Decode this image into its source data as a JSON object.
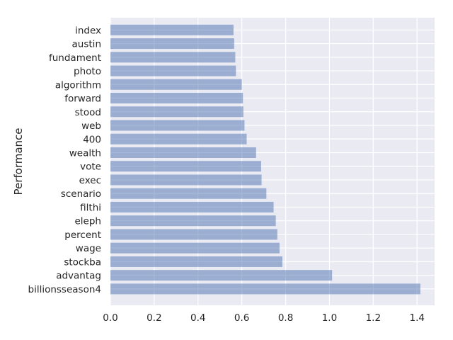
{
  "chart_data": {
    "type": "bar",
    "orientation": "horizontal",
    "title": "",
    "xlabel": "",
    "ylabel": "Performance",
    "xlim": [
      0,
      1.48
    ],
    "xticks": [
      0.0,
      0.2,
      0.4,
      0.6,
      0.8,
      1.0,
      1.2,
      1.4
    ],
    "xtick_labels": [
      "0.0",
      "0.2",
      "0.4",
      "0.6",
      "0.8",
      "1.0",
      "1.2",
      "1.4"
    ],
    "grid": true,
    "background": "#eaeaf2",
    "bar_color": "#4c72b0",
    "bar_alpha": 0.5,
    "categories": [
      "billionsseason4",
      "advantag",
      "stockba",
      "wage",
      "percent",
      "eleph",
      "filthi",
      "scenario",
      "exec",
      "vote",
      "wealth",
      "400",
      "web",
      "stood",
      "forward",
      "algorithm",
      "photo",
      "fundament",
      "austin",
      "index"
    ],
    "values": [
      1.415,
      1.012,
      0.785,
      0.772,
      0.762,
      0.755,
      0.745,
      0.712,
      0.69,
      0.688,
      0.665,
      0.622,
      0.612,
      0.607,
      0.605,
      0.6,
      0.573,
      0.57,
      0.565,
      0.562
    ]
  }
}
